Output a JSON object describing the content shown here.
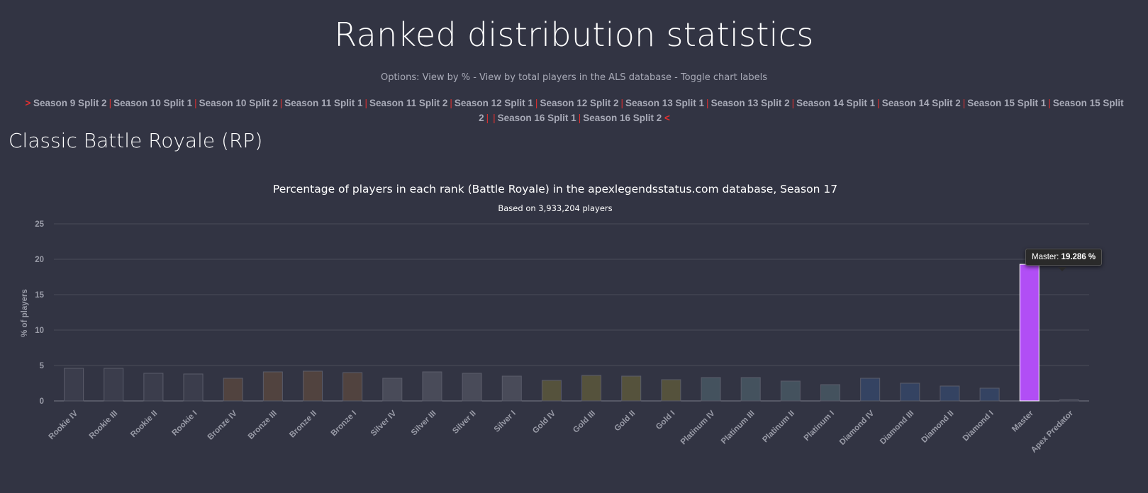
{
  "header": {
    "title": "Ranked distribution statistics",
    "options_prefix": "Options: ",
    "option_percent": "View by %",
    "option_sep": " - ",
    "option_total": "View by total players in the ALS database",
    "option_labels": "Toggle chart labels"
  },
  "season_nav": {
    "prev_arrow": ">",
    "next_arrow": "<",
    "separator": "|",
    "seasons": [
      "Season 9 Split 2",
      "Season 10 Split 1",
      "Season 10 Split 2",
      "Season 11 Split 1",
      "Season 11 Split 2",
      "Season 12 Split 1",
      "Season 12 Split 2",
      "Season 13 Split 1",
      "Season 13 Split 2",
      "Season 14 Split 1",
      "Season 14 Split 2",
      "Season 15 Split 1",
      "Season 15 Split 2",
      "Season 16 Split 1",
      "Season 16 Split 2"
    ]
  },
  "section": {
    "title": "Classic Battle Royale (RP)"
  },
  "tooltip": {
    "label": "Master: ",
    "value": "19.286 %"
  },
  "chart_data": {
    "type": "bar",
    "title": "Percentage of players in each rank (Battle Royale) in the apexlegendsstatus.com database, Season 17",
    "subtitle": "Based on 3,933,204 players",
    "xlabel": "",
    "ylabel": "% of players",
    "ylim": [
      0,
      25
    ],
    "yticks": [
      0,
      5,
      10,
      15,
      20,
      25
    ],
    "grid": true,
    "categories": [
      "Rookie IV",
      "Rookie III",
      "Rookie II",
      "Rookie I",
      "Bronze IV",
      "Bronze III",
      "Bronze II",
      "Bronze I",
      "Silver IV",
      "Silver III",
      "Silver II",
      "Silver I",
      "Gold IV",
      "Gold III",
      "Gold II",
      "Gold I",
      "Platinum IV",
      "Platinum III",
      "Platinum II",
      "Platinum I",
      "Diamond IV",
      "Diamond III",
      "Diamond II",
      "Diamond I",
      "Master",
      "Apex Predator"
    ],
    "values": [
      4.6,
      4.6,
      3.9,
      3.8,
      3.2,
      4.1,
      4.2,
      4.0,
      3.2,
      4.1,
      3.9,
      3.5,
      2.9,
      3.6,
      3.5,
      3.0,
      3.3,
      3.3,
      2.8,
      2.3,
      3.2,
      2.5,
      2.1,
      1.8,
      19.286,
      0.15
    ],
    "colors": [
      "#3b3d4c",
      "#3b3d4c",
      "#3b3d4c",
      "#3b3d4c",
      "#51433f",
      "#51433f",
      "#51433f",
      "#51433f",
      "#494b59",
      "#494b59",
      "#494b59",
      "#494b59",
      "#55523c",
      "#55523c",
      "#55523c",
      "#55523c",
      "#44525e",
      "#44525e",
      "#44525e",
      "#44525e",
      "#344362",
      "#344362",
      "#344362",
      "#344362",
      "#b14ef5",
      "#3b3d4c"
    ],
    "highlight_index": 24
  }
}
